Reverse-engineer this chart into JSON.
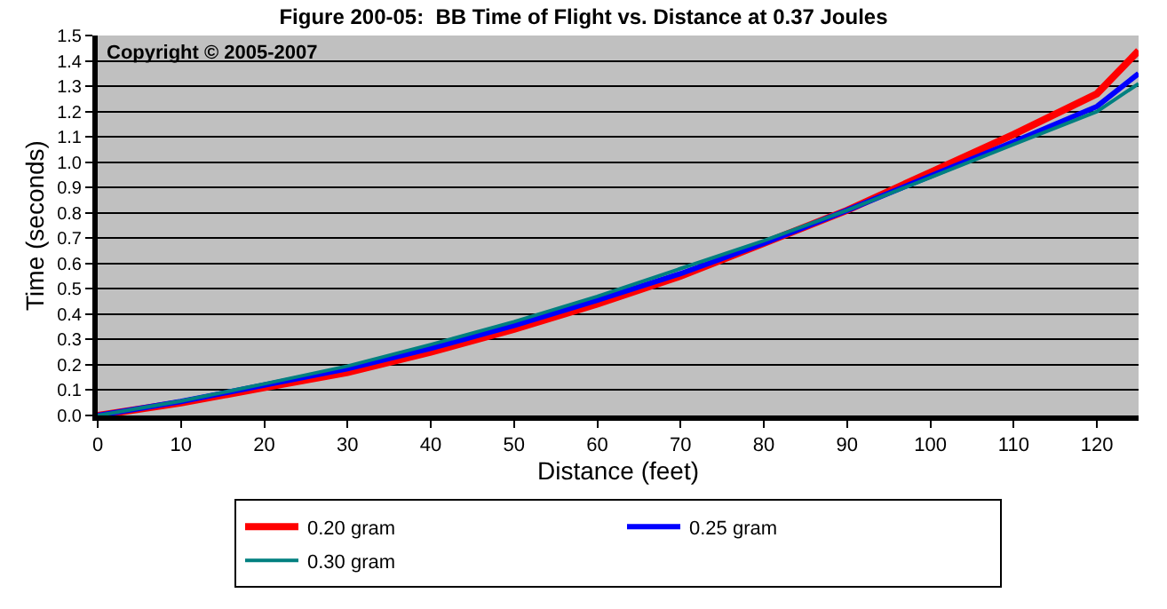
{
  "chart_data": {
    "type": "line",
    "title": "Figure 200-05:  BB Time of Flight vs. Distance at 0.37 Joules",
    "xlabel": "Distance (feet)",
    "ylabel": "Time (seconds)",
    "x": [
      0,
      10,
      20,
      30,
      40,
      50,
      60,
      70,
      80,
      90,
      100,
      110,
      120,
      125
    ],
    "series": [
      {
        "name": "0.20 gram",
        "color": "#ff0000",
        "values": [
          0,
          0.05,
          0.11,
          0.17,
          0.25,
          0.34,
          0.44,
          0.55,
          0.68,
          0.81,
          0.96,
          1.11,
          1.27,
          1.44
        ]
      },
      {
        "name": "0.25 gram",
        "color": "#0000ff",
        "values": [
          0,
          0.055,
          0.12,
          0.185,
          0.265,
          0.355,
          0.455,
          0.56,
          0.68,
          0.81,
          0.945,
          1.08,
          1.22,
          1.35
        ]
      },
      {
        "name": "0.30 gram",
        "color": "#008080",
        "values": [
          0,
          0.057,
          0.125,
          0.195,
          0.28,
          0.37,
          0.47,
          0.58,
          0.69,
          0.81,
          0.94,
          1.07,
          1.2,
          1.31
        ]
      }
    ],
    "xlim": [
      0,
      125
    ],
    "xticks": [
      0,
      10,
      20,
      30,
      40,
      50,
      60,
      70,
      80,
      90,
      100,
      110,
      120
    ],
    "ylim": [
      0,
      1.5
    ],
    "yticks": [
      {
        "value": 0,
        "label": "0.0"
      },
      0.1,
      0.2,
      0.3,
      0.4,
      0.5,
      0.6,
      0.7,
      0.8,
      0.9,
      {
        "value": 1,
        "label": "1.0"
      },
      1.1,
      1.2,
      1.3,
      1.4,
      1.5
    ],
    "grid": "y",
    "legend": "bottom",
    "marker": "none",
    "line_style": "solid",
    "annotations": [
      "Copyright © 2005-2007"
    ]
  }
}
